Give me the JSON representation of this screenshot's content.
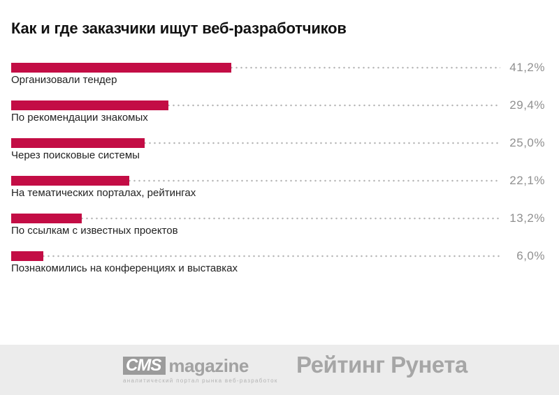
{
  "title": "Как и где заказчики ищут веб-разработчиков",
  "chart_data": {
    "type": "bar",
    "orientation": "horizontal",
    "title": "Как и где заказчики ищут веб-разработчиков",
    "categories": [
      "Организовали тендер",
      "По рекомендации знакомых",
      "Через поисковые системы",
      "На тематических порталах, рейтингах",
      "По ссылкам с известных проектов",
      "Познакомились на конференциях и выставках"
    ],
    "values": [
      41.2,
      29.4,
      25.0,
      22.1,
      13.2,
      6.0
    ],
    "value_labels": [
      "41,2%",
      "29,4%",
      "25,0%",
      "22,1%",
      "13,2%",
      "6,0%"
    ],
    "xlim": [
      0,
      100
    ],
    "grid": false,
    "legend": false,
    "bar_color": "#c30d45"
  },
  "footer": {
    "cms": {
      "box_text": "CMS",
      "magazine_text": "magazine",
      "tagline": "аналитический портал рынка веб-разработок"
    },
    "rating_runeta": "Рейтинг Рунета"
  },
  "colors": {
    "bar": "#c30d45",
    "dots": "#b4b4b4",
    "percent_text": "#909090",
    "label_text": "#222222",
    "title_text": "#111111",
    "footer_bg": "#ececec",
    "logo_gray": "#9b9b9b"
  }
}
